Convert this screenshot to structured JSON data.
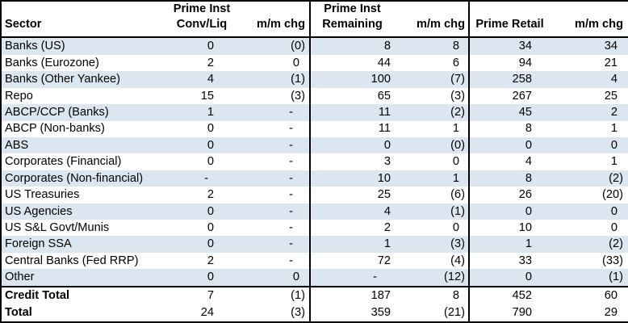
{
  "table": {
    "header": {
      "sector": "Sector",
      "cols": [
        {
          "line1": "Prime Inst",
          "line2": "Conv/Liq"
        },
        {
          "line1": "",
          "line2": "m/m chg"
        },
        {
          "line1": "Prime Inst",
          "line2": "Remaining"
        },
        {
          "line1": "",
          "line2": "m/m chg"
        },
        {
          "line1": "",
          "line2": "Prime Retail"
        },
        {
          "line1": "",
          "line2": "m/m chg"
        }
      ]
    },
    "rows": [
      {
        "sector": "Banks (US)",
        "cells": [
          "0",
          "(0)",
          "8",
          "8",
          "34",
          "34"
        ]
      },
      {
        "sector": "Banks (Eurozone)",
        "cells": [
          "2",
          "0",
          "44",
          "6",
          "94",
          "21"
        ]
      },
      {
        "sector": "Banks (Other Yankee)",
        "cells": [
          "4",
          "(1)",
          "100",
          "(7)",
          "258",
          "4"
        ]
      },
      {
        "sector": "Repo",
        "cells": [
          "15",
          "(3)",
          "65",
          "(3)",
          "267",
          "25"
        ]
      },
      {
        "sector": "ABCP/CCP (Banks)",
        "cells": [
          "1",
          "-",
          "11",
          "(2)",
          "45",
          "2"
        ]
      },
      {
        "sector": "ABCP (Non-banks)",
        "cells": [
          "0",
          "-",
          "11",
          "1",
          "8",
          "1"
        ]
      },
      {
        "sector": "ABS",
        "cells": [
          "0",
          "-",
          "0",
          "(0)",
          "0",
          "0"
        ]
      },
      {
        "sector": "Corporates (Financial)",
        "cells": [
          "0",
          "-",
          "3",
          "0",
          "4",
          "1"
        ]
      },
      {
        "sector": "Corporates (Non-financial)",
        "cells": [
          "-",
          "-",
          "10",
          "1",
          "8",
          "(2)"
        ]
      },
      {
        "sector": "US Treasuries",
        "cells": [
          "2",
          "-",
          "25",
          "(6)",
          "26",
          "(20)"
        ]
      },
      {
        "sector": "US Agencies",
        "cells": [
          "0",
          "-",
          "4",
          "(1)",
          "0",
          "0"
        ]
      },
      {
        "sector": "US S&L Govt/Munis",
        "cells": [
          "0",
          "-",
          "2",
          "0",
          "10",
          "0"
        ]
      },
      {
        "sector": "Foreign SSA",
        "cells": [
          "0",
          "-",
          "1",
          "(3)",
          "1",
          "(2)"
        ]
      },
      {
        "sector": "Central Banks (Fed RRP)",
        "cells": [
          "2",
          "-",
          "72",
          "(4)",
          "33",
          "(33)"
        ]
      },
      {
        "sector": "Other",
        "cells": [
          "0",
          "0",
          "-",
          "(12)",
          "0",
          "(1)"
        ]
      },
      {
        "sector": "Credit Total",
        "cells": [
          "7",
          "(1)",
          "187",
          "8",
          "452",
          "60"
        ],
        "emphasis": true
      },
      {
        "sector": "Total",
        "cells": [
          "24",
          "(3)",
          "359",
          "(21)",
          "790",
          "29"
        ],
        "emphasis": true
      }
    ]
  },
  "colors": {
    "band": "#dce6f1",
    "border": "#000000",
    "text": "#000000",
    "background": "#ffffff"
  }
}
